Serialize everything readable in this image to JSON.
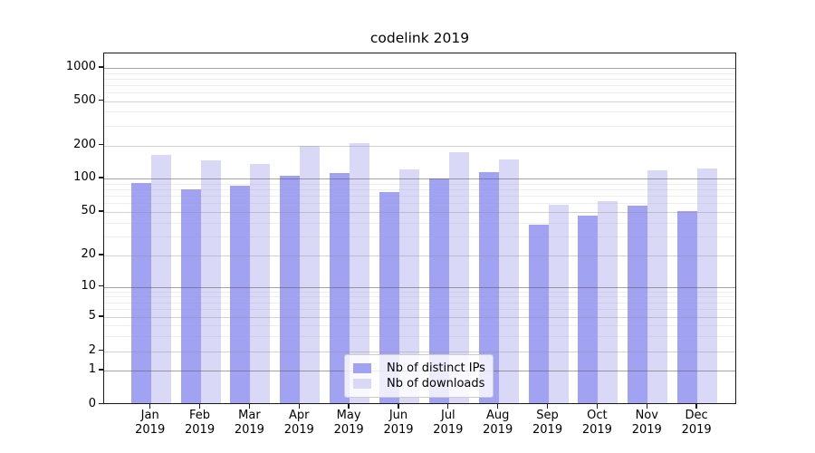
{
  "title": "codelink 2019",
  "chart_data": {
    "type": "bar",
    "title": "codelink 2019",
    "yscale": "symlog",
    "ylim": [
      0,
      1350
    ],
    "grid": true,
    "legend_position": "lower center",
    "categories": [
      "Jan 2019",
      "Feb 2019",
      "Mar 2019",
      "Apr 2019",
      "May 2019",
      "Jun 2019",
      "Jul 2019",
      "Aug 2019",
      "Sep 2019",
      "Oct 2019",
      "Nov 2019",
      "Dec 2019"
    ],
    "y_tick_labels": [
      "0",
      "1",
      "2",
      "5",
      "10",
      "20",
      "50",
      "100",
      "200",
      "500",
      "1000"
    ],
    "series": [
      {
        "name": "Nb of distinct IPs",
        "color": "#a2a2f3",
        "values": [
          89,
          77,
          84,
          103,
          108,
          74,
          97,
          112,
          37,
          45,
          55,
          50
        ]
      },
      {
        "name": "Nb of downloads",
        "color": "#d9d9f7",
        "values": [
          159,
          143,
          132,
          192,
          205,
          117,
          168,
          146,
          56,
          61,
          116,
          119
        ]
      }
    ]
  },
  "colors": {
    "background": "#ffffff",
    "spine": "#1a1a1a",
    "grid_major": "rgba(90,90,90,0.55)",
    "grid_mid": "rgba(140,140,140,0.38)",
    "grid_minor": "rgba(150,150,150,0.16)",
    "legend_border": "#cccccc",
    "text": "#000000"
  }
}
